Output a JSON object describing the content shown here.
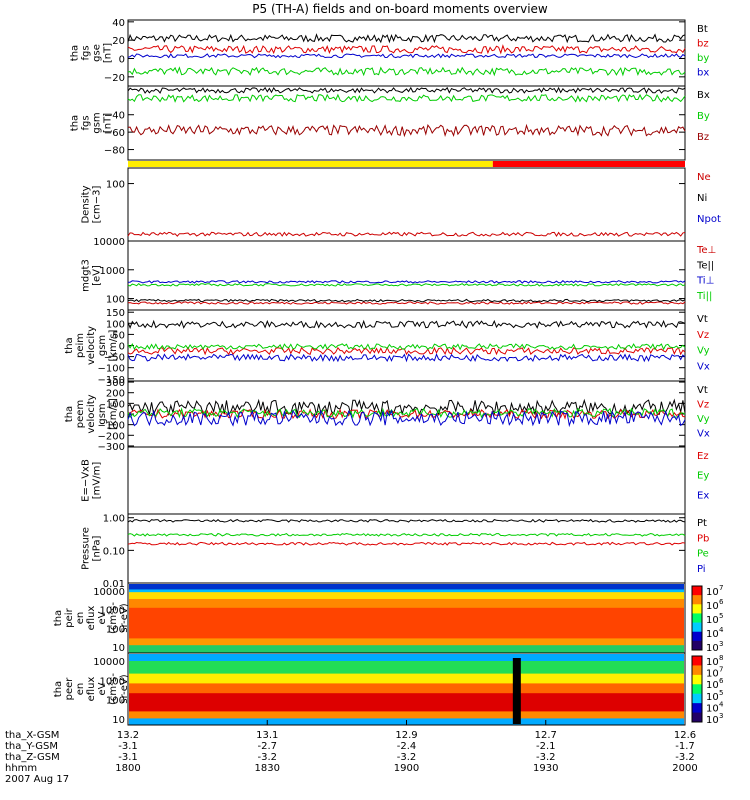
{
  "title": "P5 (TH-A) fields and on-board moments overview",
  "chart_data": [
    {
      "type": "line",
      "panel": "fgs",
      "ylabel": [
        "tha",
        "fgs",
        "gse",
        "[nT]"
      ],
      "yticks": [
        "40",
        "20",
        "0",
        "−20"
      ],
      "ylim": [
        -30,
        42
      ],
      "series": [
        {
          "name": "Bt",
          "color": "#000000",
          "level": 22,
          "noise": 4
        },
        {
          "name": "bz",
          "color": "#dd0000",
          "level": 10,
          "noise": 4
        },
        {
          "name": "by",
          "color": "#00cc00",
          "level": -14,
          "noise": 4
        },
        {
          "name": "bx",
          "color": "#0000cc",
          "level": 3,
          "noise": 2
        }
      ]
    },
    {
      "type": "line",
      "panel": "fgs-gsm",
      "ylabel": [
        "tha",
        "fgs",
        "gsm",
        "[nT]"
      ],
      "yticks": [
        "−40",
        "−60",
        "−80"
      ],
      "yticks_top": "−20",
      "ylim": [
        -92,
        -7
      ],
      "series": [
        {
          "name": "Bx",
          "color": "#000000",
          "level": -12,
          "noise": 3
        },
        {
          "name": "By",
          "color": "#00cc00",
          "level": -21,
          "noise": 4
        },
        {
          "name": "Bz",
          "color": "#990000",
          "level": -58,
          "noise": 6
        }
      ]
    },
    {
      "type": "line",
      "panel": "density",
      "ylabel": [
        "Density",
        "[cm−3]"
      ],
      "yticks": [
        "100"
      ],
      "log": true,
      "ylim": [
        0.6,
        400
      ],
      "series": [
        {
          "name": "Ne",
          "color": "#cc0000",
          "level": 1.1,
          "noise": 0.15
        },
        {
          "name": "Ni",
          "color": "#000000"
        },
        {
          "name": "Npot",
          "color": "#0000cc"
        }
      ]
    },
    {
      "type": "line",
      "panel": "temperature",
      "ylabel": [
        "mdgt3",
        "[eV]"
      ],
      "yticks": [
        "10000",
        "1000",
        "100"
      ],
      "log": true,
      "ylim": [
        40,
        10000
      ],
      "series": [
        {
          "name": "Te⊥",
          "color": "#cc0000",
          "level": 70
        },
        {
          "name": "Te||",
          "color": "#000000",
          "level": 85
        },
        {
          "name": "Ti⊥",
          "color": "#0000cc",
          "level": 380
        },
        {
          "name": "Ti||",
          "color": "#00cc00",
          "level": 300
        }
      ]
    },
    {
      "type": "line",
      "panel": "esa-velocity",
      "ylabel": [
        "tha",
        "peim",
        "velocity",
        "gsm",
        "[km/s]"
      ],
      "yticks": [
        "150",
        "100",
        "50",
        "0",
        "−50",
        "−100",
        "−150"
      ],
      "ylim": [
        -160,
        160
      ],
      "series": [
        {
          "name": "Vt",
          "color": "#000000",
          "level": 95,
          "noise": 15
        },
        {
          "name": "Vz",
          "color": "#dd0000",
          "level": -25,
          "noise": 15
        },
        {
          "name": "Vy",
          "color": "#00cc00",
          "level": -5,
          "noise": 12
        },
        {
          "name": "Vx",
          "color": "#0000cc",
          "level": -55,
          "noise": 15
        }
      ]
    },
    {
      "type": "line",
      "panel": "esa-velocity-burst",
      "ylabel": [
        "tha",
        "peem",
        "velocity",
        "gsm",
        "[km/s]"
      ],
      "yticks": [
        "300",
        "200",
        "100",
        "0",
        "−100",
        "−200",
        "−300"
      ],
      "ylim": [
        -310,
        310
      ],
      "series": [
        {
          "name": "Vt",
          "color": "#000000",
          "level": 60,
          "noise": 70
        },
        {
          "name": "Vz",
          "color": "#dd0000",
          "level": 0,
          "noise": 40
        },
        {
          "name": "Vy",
          "color": "#00cc00",
          "level": 10,
          "noise": 40
        },
        {
          "name": "Vx",
          "color": "#0000cc",
          "level": -40,
          "noise": 70
        }
      ]
    },
    {
      "type": "line",
      "panel": "efield",
      "ylabel": [
        "E=−VxB",
        "[mV/m]"
      ],
      "yticks": [],
      "series": [
        {
          "name": "Ez",
          "color": "#dd0000"
        },
        {
          "name": "Ey",
          "color": "#00cc00"
        },
        {
          "name": "Ex",
          "color": "#0000cc"
        }
      ]
    },
    {
      "type": "line",
      "panel": "pressure",
      "ylabel": [
        "Pressure",
        "[nPa]"
      ],
      "yticks": [
        "1.00",
        "0.10",
        "0.01"
      ],
      "log": true,
      "ylim": [
        0.01,
        1.3
      ],
      "series": [
        {
          "name": "Pt",
          "color": "#000000",
          "level": 0.8
        },
        {
          "name": "Pb",
          "color": "#dd0000",
          "level": 0.16
        },
        {
          "name": "Pe",
          "color": "#00cc00",
          "level": 0.3
        },
        {
          "name": "Pi",
          "color": "#0000cc"
        }
      ]
    },
    {
      "type": "heatmap",
      "panel": "ion-spectrogram",
      "ylabel": [
        "tha",
        "peir",
        "en",
        "eflux",
        "eV",
        "(cm²s-",
        "sr-eV)"
      ],
      "yticks": [
        "10000",
        "1000",
        "100",
        "10"
      ],
      "colorbar_ticks": [
        "7",
        "6",
        "5",
        "4",
        "3"
      ]
    },
    {
      "type": "heatmap",
      "panel": "electron-spectrogram",
      "ylabel": [
        "tha",
        "peer",
        "en",
        "eflux",
        "eV",
        "(cm²s-",
        "sr-eV)"
      ],
      "yticks": [
        "10000",
        "1000",
        "100",
        "10"
      ],
      "colorbar_ticks": [
        "8",
        "7",
        "6",
        "5",
        "4",
        "3"
      ]
    }
  ],
  "xaxis": {
    "rows": [
      {
        "label": "tha_X-GSM",
        "values": [
          "13.2",
          "13.1",
          "12.9",
          "12.7",
          "12.6"
        ]
      },
      {
        "label": "tha_Y-GSM",
        "values": [
          "-3.1",
          "-2.7",
          "-2.4",
          "-2.1",
          "-1.7"
        ]
      },
      {
        "label": "tha_Z-GSM",
        "values": [
          "-3.1",
          "-3.2",
          "-3.2",
          "-3.2",
          "-3.2"
        ]
      },
      {
        "label": "hhmm",
        "values": [
          "1800",
          "1830",
          "1900",
          "1930",
          "2000"
        ]
      }
    ],
    "date": "2007 Aug 17"
  },
  "mode_bar": {
    "colors": [
      "#ffee00",
      "#ff0000"
    ],
    "split_fraction": 0.655
  },
  "colors": {
    "axes": "#000000",
    "background": "#ffffff"
  }
}
